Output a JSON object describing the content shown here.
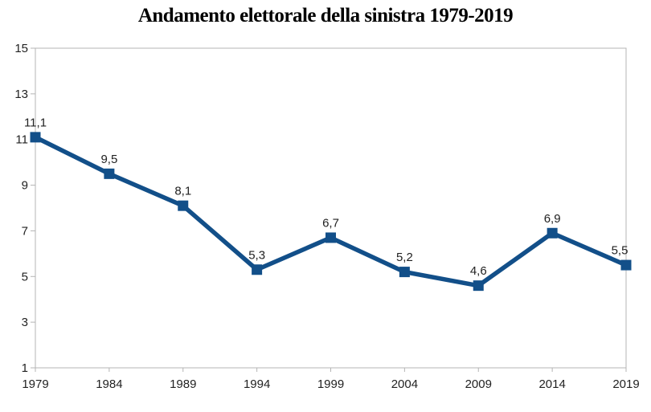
{
  "page": {
    "background": "#ffffff"
  },
  "chart_data": {
    "type": "line",
    "title": "Andamento elettorale della sinistra 1979-2019",
    "categories": [
      "1979",
      "1984",
      "1989",
      "1994",
      "1999",
      "2004",
      "2009",
      "2014",
      "2019"
    ],
    "series": [
      {
        "name": "sinistra",
        "values": [
          11.1,
          9.5,
          8.1,
          5.3,
          6.7,
          5.2,
          4.6,
          6.9,
          5.5
        ]
      }
    ],
    "data_labels": [
      "11,1",
      "9,5",
      "8,1",
      "5,3",
      "6,7",
      "5,2",
      "4,6",
      "6,9",
      "5,5"
    ],
    "xlabel": "",
    "ylabel": "",
    "ylim": [
      1,
      15
    ],
    "ytick_step": 2,
    "ytick_labels": [
      "15",
      "13",
      "11",
      "9",
      "7",
      "5",
      "3",
      "1"
    ],
    "grid": "off",
    "legend": "none",
    "marker": "square",
    "colors": {
      "series": "#124F89",
      "axis": "#b4b4b4",
      "text": "#222222",
      "title": "#000000",
      "background": "#ffffff"
    }
  }
}
